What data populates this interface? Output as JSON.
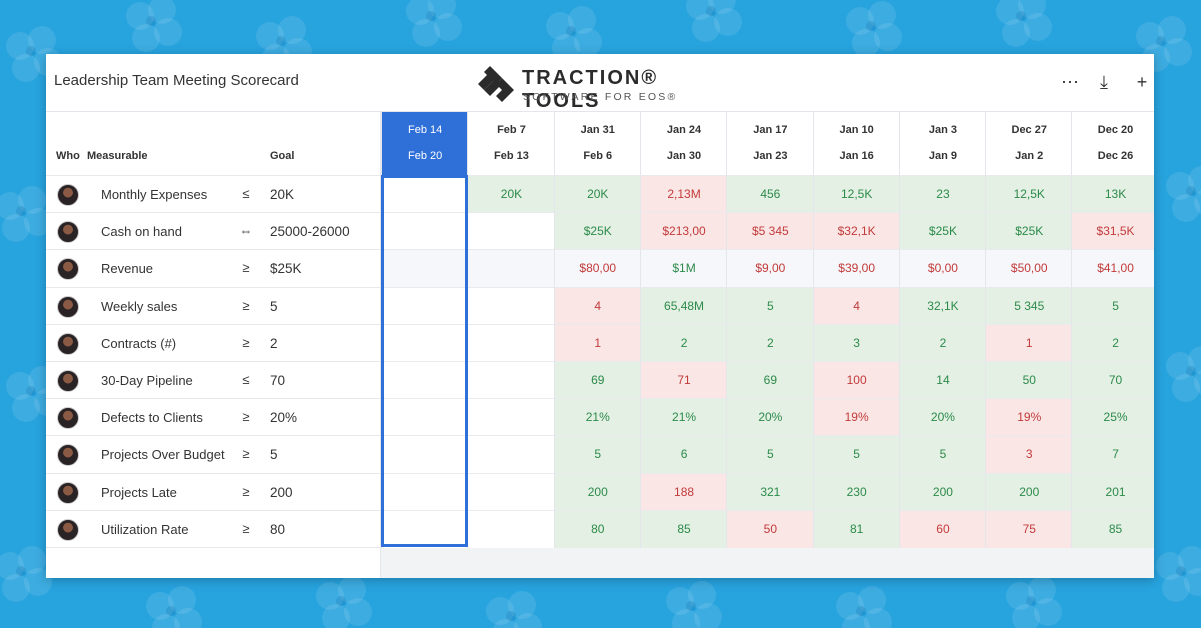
{
  "header": {
    "title": "Leadership Team Meeting Scorecard",
    "logo_name": "TRACTION® TOOLS",
    "logo_tagline": "SOFTWARE FOR EOS®",
    "more_icon": "more-horizontal-icon",
    "more_glyph": "⋯",
    "download_icon": "download-icon",
    "download_glyph": "⤓",
    "add_icon": "plus-icon",
    "add_glyph": "+"
  },
  "columns": {
    "who": "Who",
    "measurable": "Measurable",
    "goal": "Goal"
  },
  "weeks": [
    {
      "start": "Feb 14",
      "end": "Feb 20",
      "current": true
    },
    {
      "start": "Feb 7",
      "end": "Feb 13"
    },
    {
      "start": "Jan 31",
      "end": "Feb 6"
    },
    {
      "start": "Jan 24",
      "end": "Jan 30"
    },
    {
      "start": "Jan 17",
      "end": "Jan 23"
    },
    {
      "start": "Jan 10",
      "end": "Jan 16"
    },
    {
      "start": "Jan 3",
      "end": "Jan 9"
    },
    {
      "start": "Dec 27",
      "end": "Jan 2"
    },
    {
      "start": "Dec 20",
      "end": "Dec 26"
    }
  ],
  "rows": [
    {
      "measurable": "Monthly Expenses",
      "op": "≤",
      "goal": "20K",
      "values": [
        [
          "",
          "w"
        ],
        [
          "20K",
          "g"
        ],
        [
          "20K",
          "g"
        ],
        [
          "2,13M",
          "r"
        ],
        [
          "456",
          "g"
        ],
        [
          "12,5K",
          "g"
        ],
        [
          "23",
          "g"
        ],
        [
          "12,5K",
          "g"
        ],
        [
          "13K",
          "g"
        ]
      ]
    },
    {
      "measurable": "Cash on hand",
      "op": "⇔",
      "goal": "25000-26000",
      "values": [
        [
          "",
          "w"
        ],
        [
          "",
          "w"
        ],
        [
          "$25K",
          "g"
        ],
        [
          "$213,00",
          "r"
        ],
        [
          "$5 345",
          "r"
        ],
        [
          "$32,1K",
          "r"
        ],
        [
          "$25K",
          "g"
        ],
        [
          "$25K",
          "g"
        ],
        [
          "$31,5K",
          "r"
        ]
      ]
    },
    {
      "measurable": "Revenue",
      "op": "≥",
      "goal": "$25K",
      "values": [
        [
          "",
          "b"
        ],
        [
          "",
          "b"
        ],
        [
          "$80,00",
          "bred"
        ],
        [
          "$1M",
          "bgreen"
        ],
        [
          "$9,00",
          "bred"
        ],
        [
          "$39,00",
          "bred"
        ],
        [
          "$0,00",
          "bred"
        ],
        [
          "$50,00",
          "bred"
        ],
        [
          "$41,00",
          "bred"
        ]
      ]
    },
    {
      "measurable": "Weekly sales",
      "op": "≥",
      "goal": "5",
      "values": [
        [
          "",
          "w"
        ],
        [
          "",
          "w"
        ],
        [
          "4",
          "r"
        ],
        [
          "65,48M",
          "g"
        ],
        [
          "5",
          "g"
        ],
        [
          "4",
          "r"
        ],
        [
          "32,1K",
          "g"
        ],
        [
          "5 345",
          "g"
        ],
        [
          "5",
          "g"
        ]
      ]
    },
    {
      "measurable": "Contracts (#)",
      "op": "≥",
      "goal": "2",
      "values": [
        [
          "",
          "w"
        ],
        [
          "",
          "w"
        ],
        [
          "1",
          "r"
        ],
        [
          "2",
          "g"
        ],
        [
          "2",
          "g"
        ],
        [
          "3",
          "g"
        ],
        [
          "2",
          "g"
        ],
        [
          "1",
          "r"
        ],
        [
          "2",
          "g"
        ]
      ]
    },
    {
      "measurable": "30-Day Pipeline",
      "op": "≤",
      "goal": "70",
      "values": [
        [
          "",
          "w"
        ],
        [
          "",
          "w"
        ],
        [
          "69",
          "g"
        ],
        [
          "71",
          "r"
        ],
        [
          "69",
          "g"
        ],
        [
          "100",
          "r"
        ],
        [
          "14",
          "g"
        ],
        [
          "50",
          "g"
        ],
        [
          "70",
          "g"
        ]
      ]
    },
    {
      "measurable": "Defects to Clients",
      "op": "≥",
      "goal": "20%",
      "values": [
        [
          "",
          "w"
        ],
        [
          "",
          "w"
        ],
        [
          "21%",
          "g"
        ],
        [
          "21%",
          "g"
        ],
        [
          "20%",
          "g"
        ],
        [
          "19%",
          "r"
        ],
        [
          "20%",
          "g"
        ],
        [
          "19%",
          "r"
        ],
        [
          "25%",
          "g"
        ]
      ]
    },
    {
      "measurable": "Projects Over Budget",
      "op": "≥",
      "goal": "5",
      "values": [
        [
          "",
          "w"
        ],
        [
          "",
          "w"
        ],
        [
          "5",
          "g"
        ],
        [
          "6",
          "g"
        ],
        [
          "5",
          "g"
        ],
        [
          "5",
          "g"
        ],
        [
          "5",
          "g"
        ],
        [
          "3",
          "r"
        ],
        [
          "7",
          "g"
        ]
      ]
    },
    {
      "measurable": "Projects Late",
      "op": "≥",
      "goal": "200",
      "values": [
        [
          "",
          "w"
        ],
        [
          "",
          "w"
        ],
        [
          "200",
          "g"
        ],
        [
          "188",
          "r"
        ],
        [
          "321",
          "g"
        ],
        [
          "230",
          "g"
        ],
        [
          "200",
          "g"
        ],
        [
          "200",
          "g"
        ],
        [
          "201",
          "g"
        ]
      ]
    },
    {
      "measurable": "Utilization Rate",
      "op": "≥",
      "goal": "80",
      "values": [
        [
          "",
          "w"
        ],
        [
          "",
          "w"
        ],
        [
          "80",
          "g"
        ],
        [
          "85",
          "g"
        ],
        [
          "50",
          "r"
        ],
        [
          "81",
          "g"
        ],
        [
          "60",
          "r"
        ],
        [
          "75",
          "r"
        ],
        [
          "85",
          "g"
        ]
      ]
    }
  ],
  "colors": {
    "background": "#27a3de",
    "current_week": "#2f6fd8",
    "good_bg": "#e3f0e3",
    "good_text": "#2c8a4a",
    "bad_bg": "#fbe6e6",
    "bad_text": "#c23a3a"
  }
}
